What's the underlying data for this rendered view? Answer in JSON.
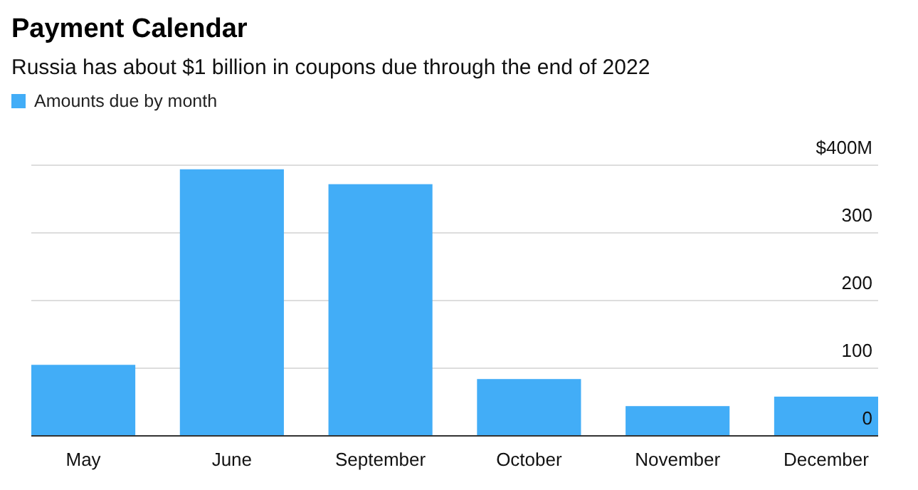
{
  "chart_data": {
    "type": "bar",
    "title": "Payment Calendar",
    "subtitle": "Russia has about $1 billion in coupons due through the end of 2022",
    "categories": [
      "May",
      "June",
      "September",
      "October",
      "November",
      "December"
    ],
    "series": [
      {
        "name": "Amounts due by month",
        "color": "#42adf7",
        "values": [
          105,
          394,
          372,
          84,
          44,
          58
        ]
      }
    ],
    "ylim": [
      0,
      400
    ],
    "yticks": [
      0,
      100,
      200,
      300,
      {
        "value": 400,
        "label": "$400M"
      }
    ],
    "grid": "y",
    "legend": "top left"
  }
}
